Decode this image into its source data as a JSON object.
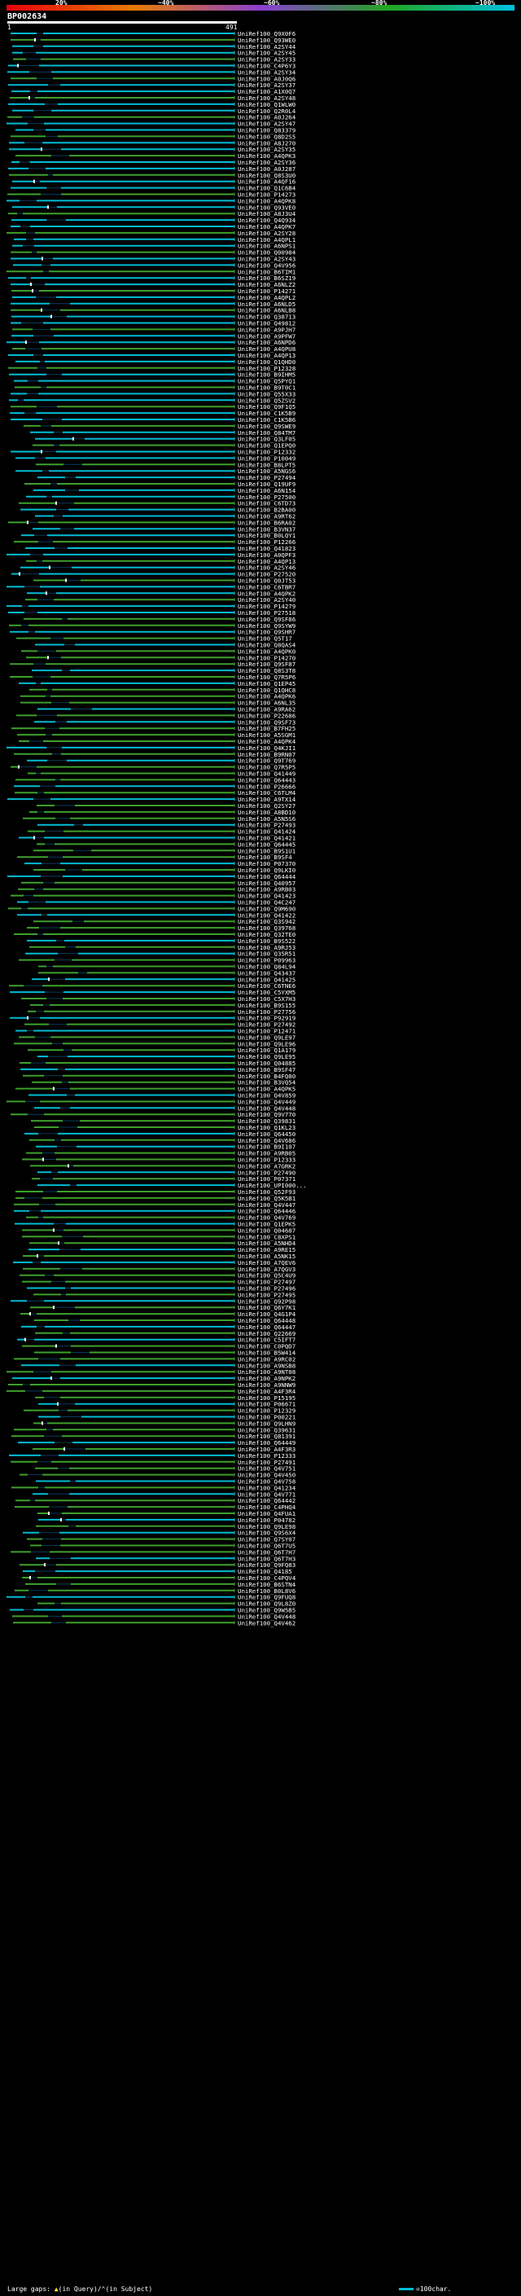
{
  "query_id": "BP002634",
  "range_start": "1",
  "range_end": "491",
  "scale": [
    {
      "label": "20%",
      "color": "#e8000b"
    },
    {
      "label": "~40%",
      "color": "#e87b00"
    },
    {
      "label": "~60%",
      "color": "#8b3fd1"
    },
    {
      "label": "~80%",
      "color": "#22a51f"
    },
    {
      "label": "~100%",
      "color": "#00c0e0"
    }
  ],
  "colors": {
    "high": "#00bcd4",
    "mid": "#3ea02c",
    "gap": "#ffffff",
    "background": "#000000"
  },
  "hits": [
    "UniRef100_Q9X0F6",
    "UniRef100_Q93WE0",
    "UniRef100_A2SY44",
    "UniRef100_A2SY45",
    "UniRef100_A2SY33",
    "UniRef100_C4P6Y3",
    "UniRef100_A2SY34",
    "UniRef100_A0J0Q6",
    "UniRef100_A2SY37",
    "UniRef100_A1X0Q7",
    "UniRef100_A2SY48",
    "UniRef100_Q1WLW0",
    "UniRef100_Q2R0L4",
    "UniRef100_A0J264",
    "UniRef100_A2SY47",
    "UniRef100_Q83379",
    "UniRef100_Q8D2S5",
    "UniRef100_A8J270",
    "UniRef100_A2SY35",
    "UniRef100_A4QPK3",
    "UniRef100_A2SY36",
    "UniRef100_A0J287",
    "UniRef100_Q8S3U0",
    "UniRef100_A4QF16",
    "UniRef100_Q1C6B4",
    "UniRef100_P14273",
    "UniRef100_A4QPK8",
    "UniRef100_Q93VE0",
    "UniRef100_A8J3U4",
    "UniRef100_Q4Q934",
    "UniRef100_A4QPK7",
    "UniRef100_A2SY28",
    "UniRef100_A4QPL1",
    "UniRef100_A6NPS1",
    "UniRef100_Q00984",
    "UniRef100_A2SY43",
    "UniRef100_Q4V956",
    "UniRef100_B6TIM1",
    "UniRef100_B6SZ19",
    "UniRef100_A6NLZ2",
    "UniRef100_P14271",
    "UniRef100_A4QPL2",
    "UniRef100_A6NLD5",
    "UniRef100_A6NLB8",
    "UniRef100_Q38713",
    "UniRef100_Q49812",
    "UniRef100_A9PJH7",
    "UniRef100_A9PFW7",
    "UniRef100_A6NPD6",
    "UniRef100_A4QPU8",
    "UniRef100_A4QP13",
    "UniRef100_Q1QHD0",
    "UniRef100_P12328",
    "UniRef100_B9IHM5",
    "UniRef100_Q5PYQ1",
    "UniRef100_B9T0C1",
    "UniRef100_Q55X33",
    "UniRef100_Q5ZSV2",
    "UniRef100_Q9F1Q5",
    "UniRef100_C1K5B9",
    "UniRef100_C1K5B6",
    "UniRef100_Q9SWE9",
    "UniRef100_Q84TM7",
    "UniRef100_Q3LF05",
    "UniRef100_Q1EPQ0",
    "UniRef100_P12332",
    "UniRef100_P10049",
    "UniRef100_B8LPT5",
    "UniRef100_A5NGS6",
    "UniRef100_P27494",
    "UniRef100_Q19UF9",
    "UniRef100_A6N154",
    "UniRef100_P27500",
    "UniRef100_C6TD73",
    "UniRef100_B2BA00",
    "UniRef100_A9RT62",
    "UniRef100_B6RA02",
    "UniRef100_B3VN37",
    "UniRef100_B0LQY1",
    "UniRef100_P12266",
    "UniRef100_Q41823",
    "UniRef100_A0QPF3",
    "UniRef100_A4QP13",
    "UniRef100_A2SY46",
    "UniRef100_P27520",
    "UniRef100_Q0JT53",
    "UniRef100_C6TBR7",
    "UniRef100_A4QPK2",
    "UniRef100_A2SY40",
    "UniRef100_P14279",
    "UniRef100_P27518",
    "UniRef100_Q9SF86",
    "UniRef100_Q9SYW9",
    "UniRef100_Q9SHR7",
    "UniRef100_Q5T17",
    "UniRef100_Q8QAS4",
    "UniRef100_A4QPK0",
    "UniRef100_P14270",
    "UniRef100_Q9SF87",
    "UniRef100_Q8S3T8",
    "UniRef100_Q7R5P6",
    "UniRef100_Q1EP45",
    "UniRef100_Q1QHC8",
    "UniRef100_A4QPK6",
    "UniRef100_A6NL35",
    "UniRef100_A9RA62",
    "UniRef100_P22686",
    "UniRef100_Q9SF73",
    "UniRef100_B7FH25",
    "UniRef100_A5SGM1",
    "UniRef100_A4QPK4",
    "UniRef100_Q4KJI1",
    "UniRef100_B9RN07",
    "UniRef100_Q9T769",
    "UniRef100_Q7R5P5",
    "UniRef100_Q41449",
    "UniRef100_Q64443",
    "UniRef100_P26666",
    "UniRef100_C6TLM4",
    "UniRef100_A9TX14",
    "UniRef100_Q2SY27",
    "UniRef100_A8BD10",
    "UniRef100_A5N5S6",
    "UniRef100_P27493",
    "UniRef100_Q41424",
    "UniRef100_Q41421",
    "UniRef100_Q64445",
    "UniRef100_B9S1U1",
    "UniRef100_B9SF4",
    "UniRef100_P07370",
    "UniRef100_Q9LKI0",
    "UniRef100_Q64444",
    "UniRef100_Q40957",
    "UniRef100_A9RB03",
    "UniRef100_Q41423",
    "UniRef100_Q4C247",
    "UniRef100_Q9M690",
    "UniRef100_Q41422",
    "UniRef100_Q3S942",
    "UniRef100_Q39768",
    "UniRef100_Q32TE0",
    "UniRef100_B9S522",
    "UniRef100_A9RJ53",
    "UniRef100_Q35R51",
    "UniRef100_P09963",
    "UniRef100_Q84L94",
    "UniRef100_Q43437",
    "UniRef100_Q41425",
    "UniRef100_C6TNE6",
    "UniRef100_C5YXM5",
    "UniRef100_C5X7H3",
    "UniRef100_B9S155",
    "UniRef100_P27756",
    "UniRef100_P92919",
    "UniRef100_P27492",
    "UniRef100_P12471",
    "UniRef100_Q9LE97",
    "UniRef100_Q9LE96",
    "UniRef100_Q1A179",
    "UniRef100_Q9LE95",
    "UniRef100_Q04885",
    "UniRef100_B9SF47",
    "UniRef100_B4FQ80",
    "UniRef100_B3VQ54",
    "UniRef100_A4QPK5",
    "UniRef100_Q4V859",
    "UniRef100_Q4V449",
    "UniRef100_Q4V448",
    "UniRef100_Q9V770",
    "UniRef100_Q39831",
    "UniRef100_Q1KL23",
    "UniRef100_Q64450",
    "UniRef100_Q4V686",
    "UniRef100_B9I107",
    "UniRef100_A9RB05",
    "UniRef100_P12333",
    "UniRef100_A7GRK2",
    "UniRef100_P27490",
    "UniRef100_P07371",
    "UniRef100_UPI000...",
    "UniRef100_Q52F93",
    "UniRef100_Q5K5B1",
    "UniRef100_Q4V447",
    "UniRef100_Q64446",
    "UniRef100_Q4V769",
    "UniRef100_Q1EPK5",
    "UniRef100_Q04687",
    "UniRef100_C8XPS1",
    "UniRef100_A5NHD4",
    "UniRef100_A9RE15",
    "UniRef100_A5NK15",
    "UniRef100_A7QEV6",
    "UniRef100_A7QGV3",
    "UniRef100_Q5C4U9",
    "UniRef100_P27497",
    "UniRef100_P27496",
    "UniRef100_P27495",
    "UniRef100_Q92P98",
    "UniRef100_Q6Y7K1",
    "UniRef100_Q4G1P4",
    "UniRef100_Q64448",
    "UniRef100_Q64447",
    "UniRef100_Q22669",
    "UniRef100_C5IFT7",
    "UniRef100_C0PQD7",
    "UniRef100_B5W414",
    "UniRef100_A9RC02",
    "UniRef100_A9NSB8",
    "UniRef100_A9NT08",
    "UniRef100_A9NPK2",
    "UniRef100_A9NNW9",
    "UniRef100_A4F3R4",
    "UniRef100_P15195",
    "UniRef100_P06671",
    "UniRef100_P12329",
    "UniRef100_P00221",
    "UniRef100_Q9LHN9",
    "UniRef100_Q39631",
    "UniRef100_Q81391",
    "UniRef100_Q64449",
    "UniRef100_A4F3R3",
    "UniRef100_P12333",
    "UniRef100_P27491",
    "UniRef100_Q4V751",
    "UniRef100_Q4V450",
    "UniRef100_Q4V758",
    "UniRef100_Q41234",
    "UniRef100_Q4V771",
    "UniRef100_Q64442",
    "UniRef100_C4PHQ4",
    "UniRef100_Q4FUA1",
    "UniRef100_P04782",
    "UniRef100_Q9LE98",
    "UniRef100_Q9S6X4",
    "UniRef100_Q7SY07",
    "UniRef100_Q6T7U5",
    "UniRef100_Q6T7H7",
    "UniRef100_Q6T7H3",
    "UniRef100_Q9FQ83",
    "UniRef100_Q4185",
    "UniRef100_C4PQV4",
    "UniRef100_B6STN4",
    "UniRef100_B0L8V6",
    "UniRef100_Q9FUQ8",
    "UniRef100_Q9L8Z0",
    "UniRef100_Q9W5B5",
    "UniRef100_Q4V448",
    "UniRef100_Q4V462"
  ],
  "legend": {
    "gaps_label": "Large gaps: ",
    "in_query_label": "(in Query)/",
    "in_subject_label": "(in Subject)",
    "scale_label": "=100char."
  }
}
